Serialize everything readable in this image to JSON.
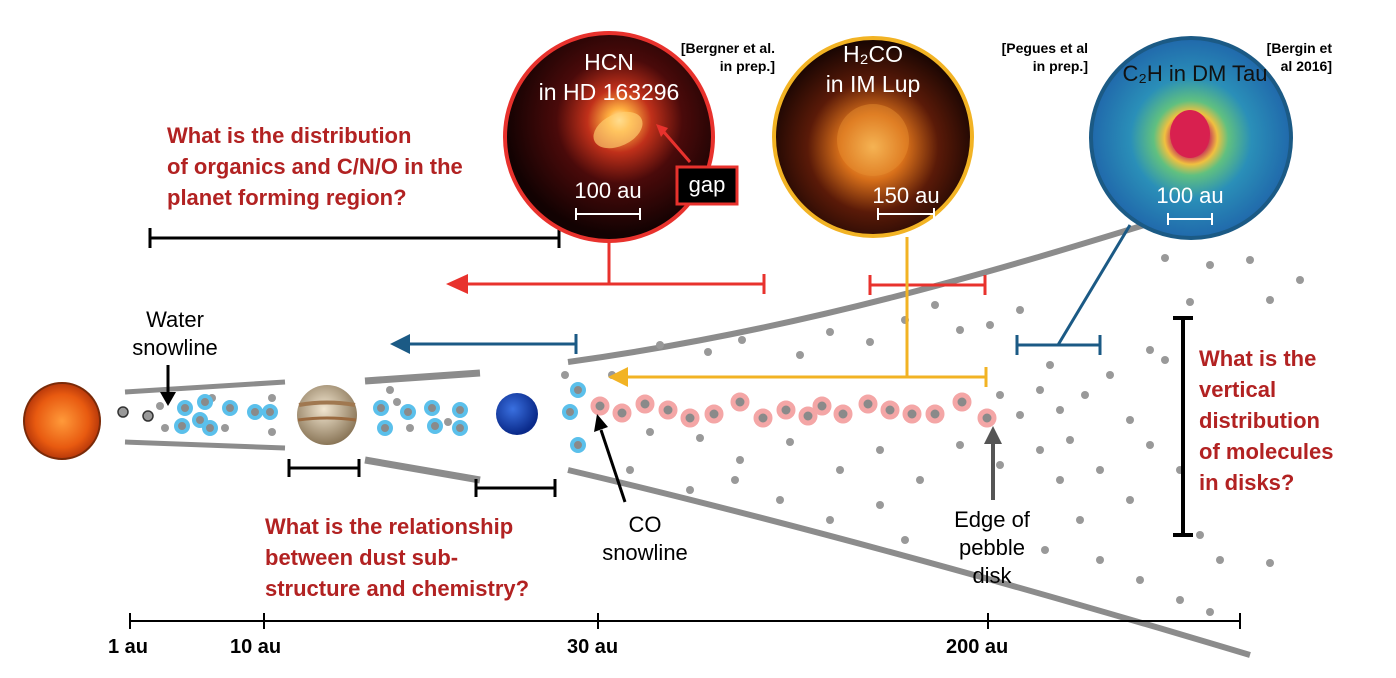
{
  "questions": {
    "organics": [
      "What is the distribution",
      "of organics and C/N/O in the",
      "planet forming region?"
    ],
    "substructure": [
      "What is the relationship",
      "between dust sub-",
      "structure and chemistry?"
    ],
    "vertical": [
      "What is the",
      "vertical",
      "distribution",
      "of molecules",
      "in disks?"
    ]
  },
  "labels": {
    "water_snowline": [
      "Water",
      "snowline"
    ],
    "co_snowline": [
      "CO",
      "snowline"
    ],
    "pebble_edge": [
      "Edge of",
      "pebble",
      "disk"
    ]
  },
  "insets": [
    {
      "mol_a": "HCN",
      "mol_b": "in HD 163296",
      "scale": "100 au",
      "note": "gap",
      "ref": [
        "[Bergner et al.",
        "in prep.]"
      ]
    },
    {
      "mol_a": "H₂CO",
      "mol_b": "in IM Lup",
      "scale": "150 au",
      "ref": [
        "[Pegues et al",
        "in prep.]"
      ]
    },
    {
      "mol_a": "C₂H in DM Tau",
      "scale": "100 au",
      "ref": [
        "[Bergin et",
        "al 2016]"
      ]
    }
  ],
  "axis_ticks": [
    "1 au",
    "10 au",
    "30 au",
    "200 au"
  ],
  "colors": {
    "question": "#b22222",
    "red_arrow": "#e8322d",
    "blue_arrow": "#1b5a85",
    "yellow_arrow": "#f2b324",
    "ice_blue": "#5bc0eb",
    "co_pink": "#f4a6a6",
    "dust": "#999999",
    "disk_edge": "#8c8c8c"
  }
}
